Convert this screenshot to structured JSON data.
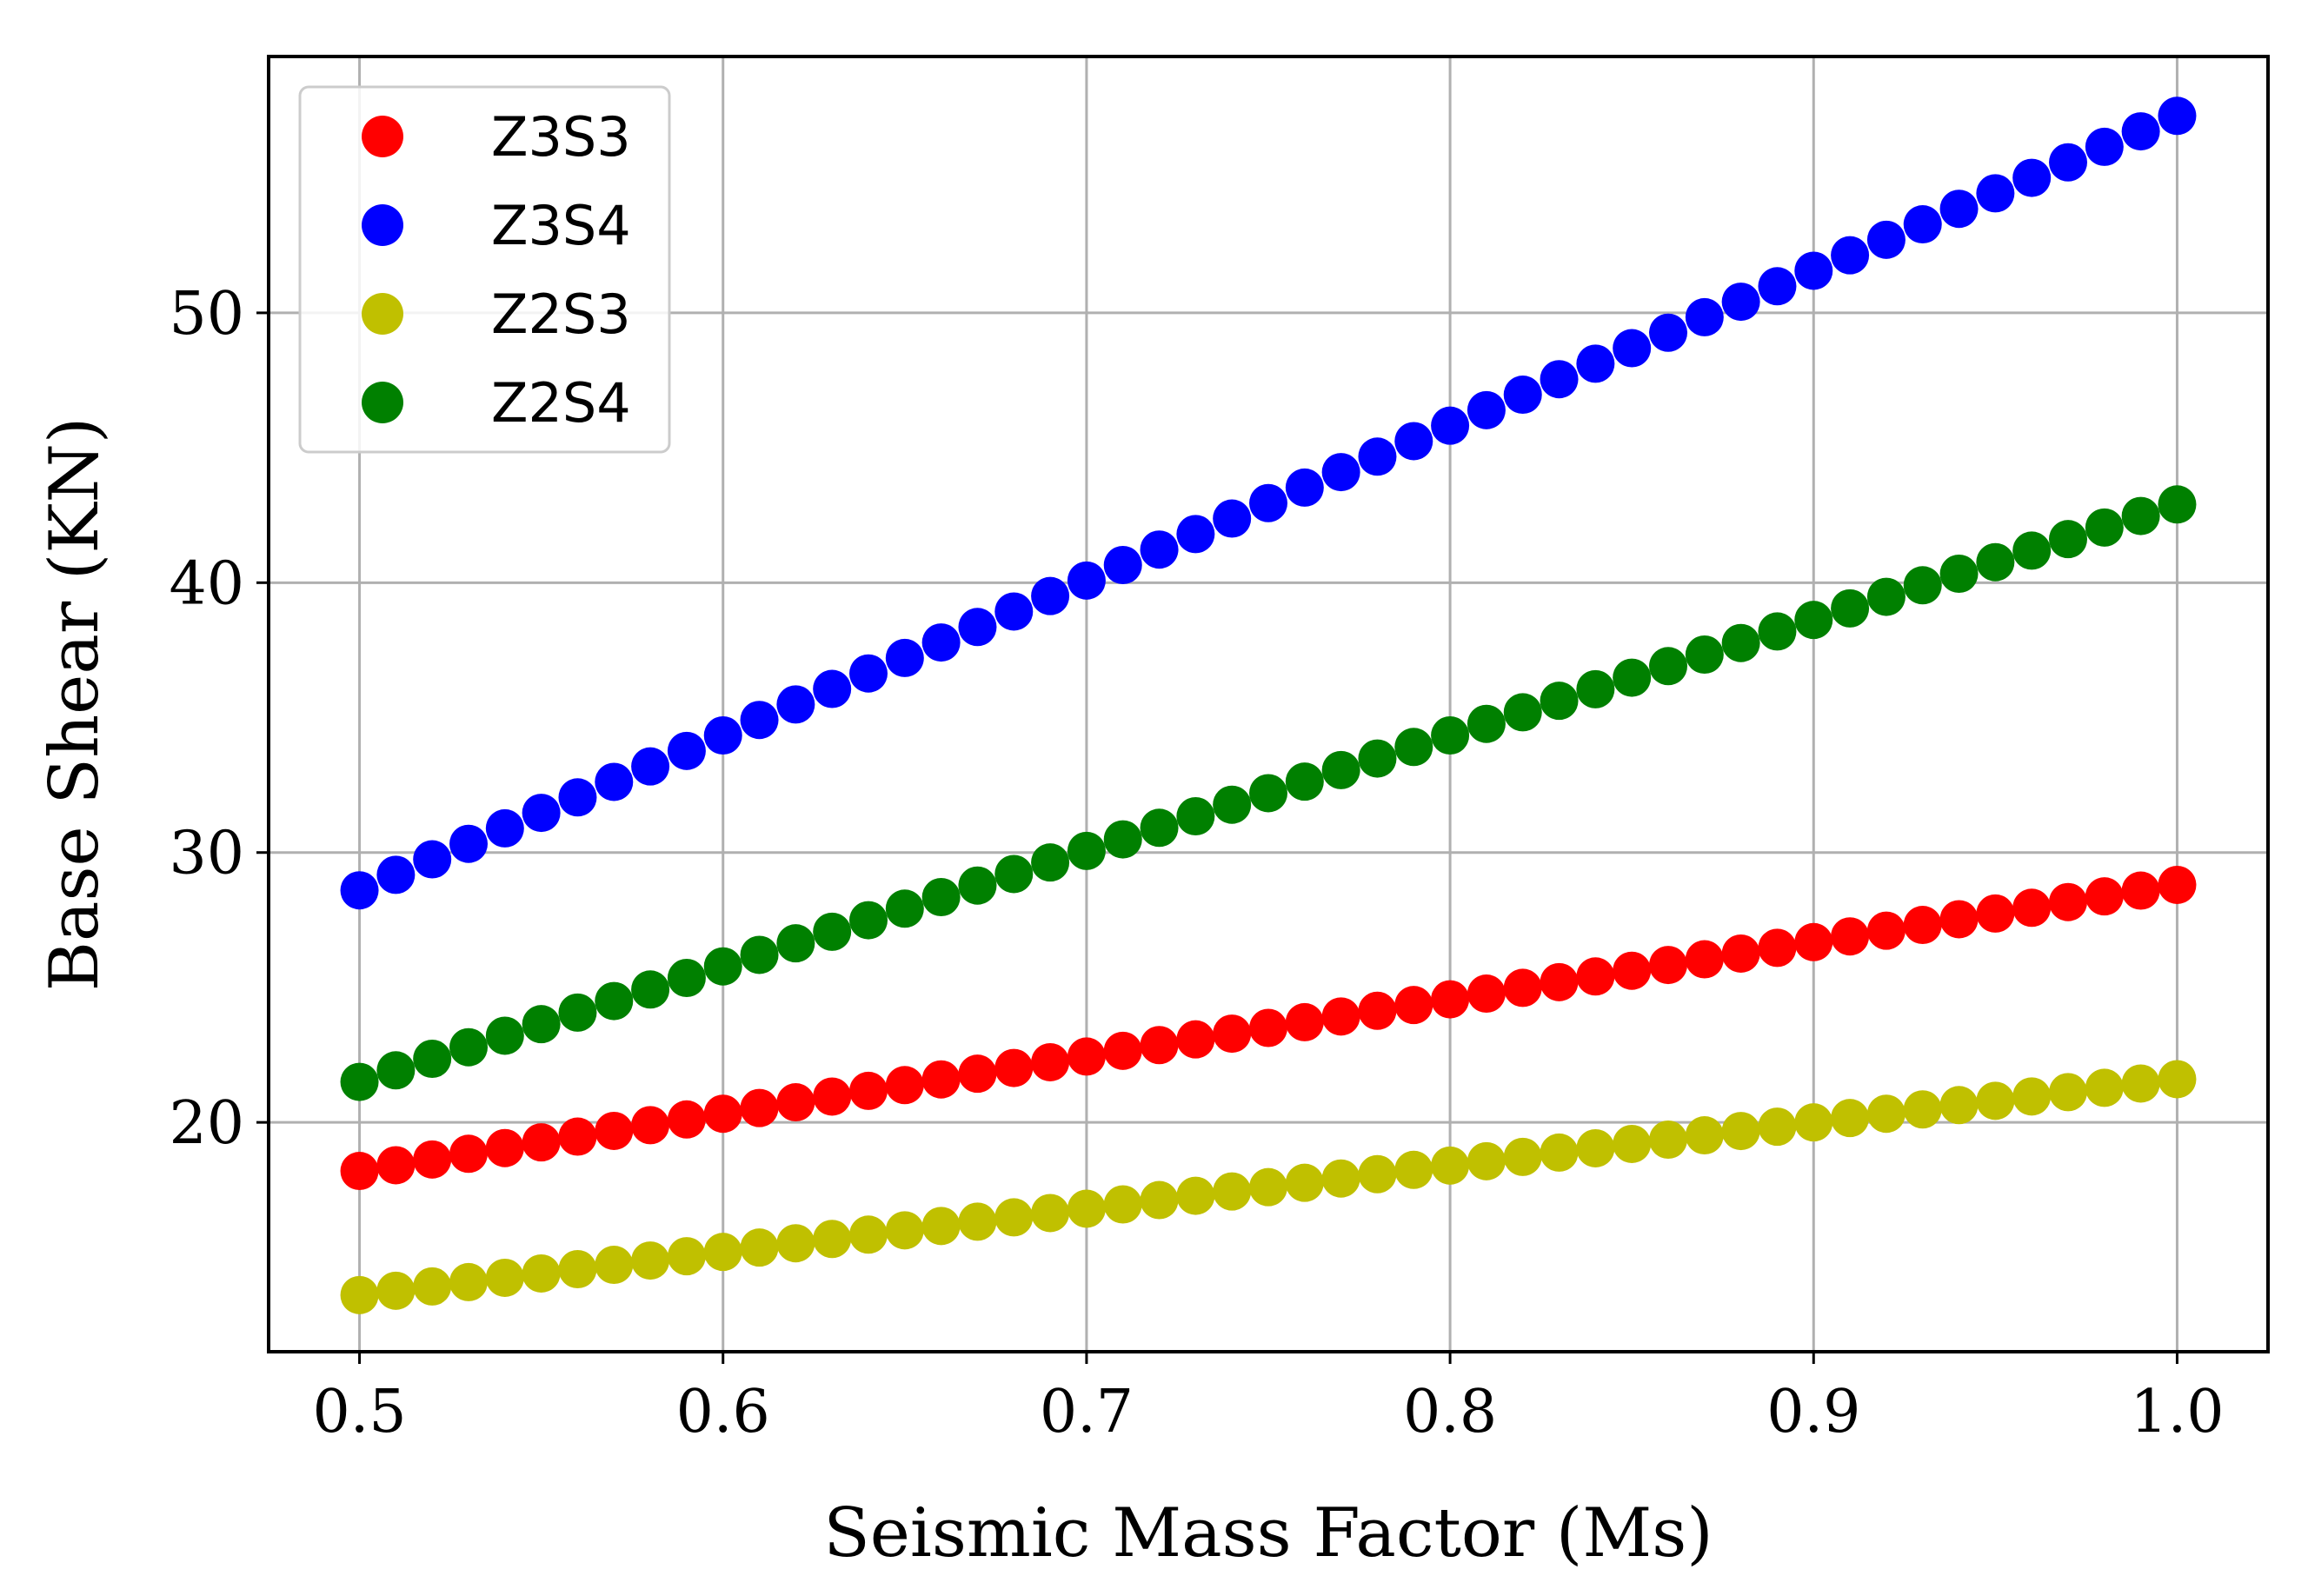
{
  "chart_data": {
    "type": "scatter",
    "title": "",
    "xlabel": "Seismic Mass Factor (Ms)",
    "ylabel": "Base Shear (KN)",
    "xlim": [
      0.475,
      1.025
    ],
    "ylim": [
      11.5,
      59.5
    ],
    "xticks": [
      0.5,
      0.6,
      0.7,
      0.8,
      0.9,
      1.0
    ],
    "xtick_labels": [
      "0.5",
      "0.6",
      "0.7",
      "0.8",
      "0.9",
      "1.0"
    ],
    "yticks": [
      20,
      30,
      40,
      50
    ],
    "ytick_labels": [
      "20",
      "30",
      "40",
      "50"
    ],
    "grid": true,
    "legend_position": "top-left",
    "x": {
      "start": 0.5,
      "end": 1.0,
      "step": 0.01
    },
    "series": [
      {
        "name": "Z3S3",
        "color": "#ff0000",
        "y_start": 18.2,
        "y_end": 28.8
      },
      {
        "name": "Z3S4",
        "color": "#0000ff",
        "y_start": 28.6,
        "y_end": 57.3
      },
      {
        "name": "Z2S3",
        "color": "#c0c000",
        "y_start": 13.6,
        "y_end": 21.6
      },
      {
        "name": "Z2S4",
        "color": "#008000",
        "y_start": 21.5,
        "y_end": 42.9
      }
    ]
  }
}
